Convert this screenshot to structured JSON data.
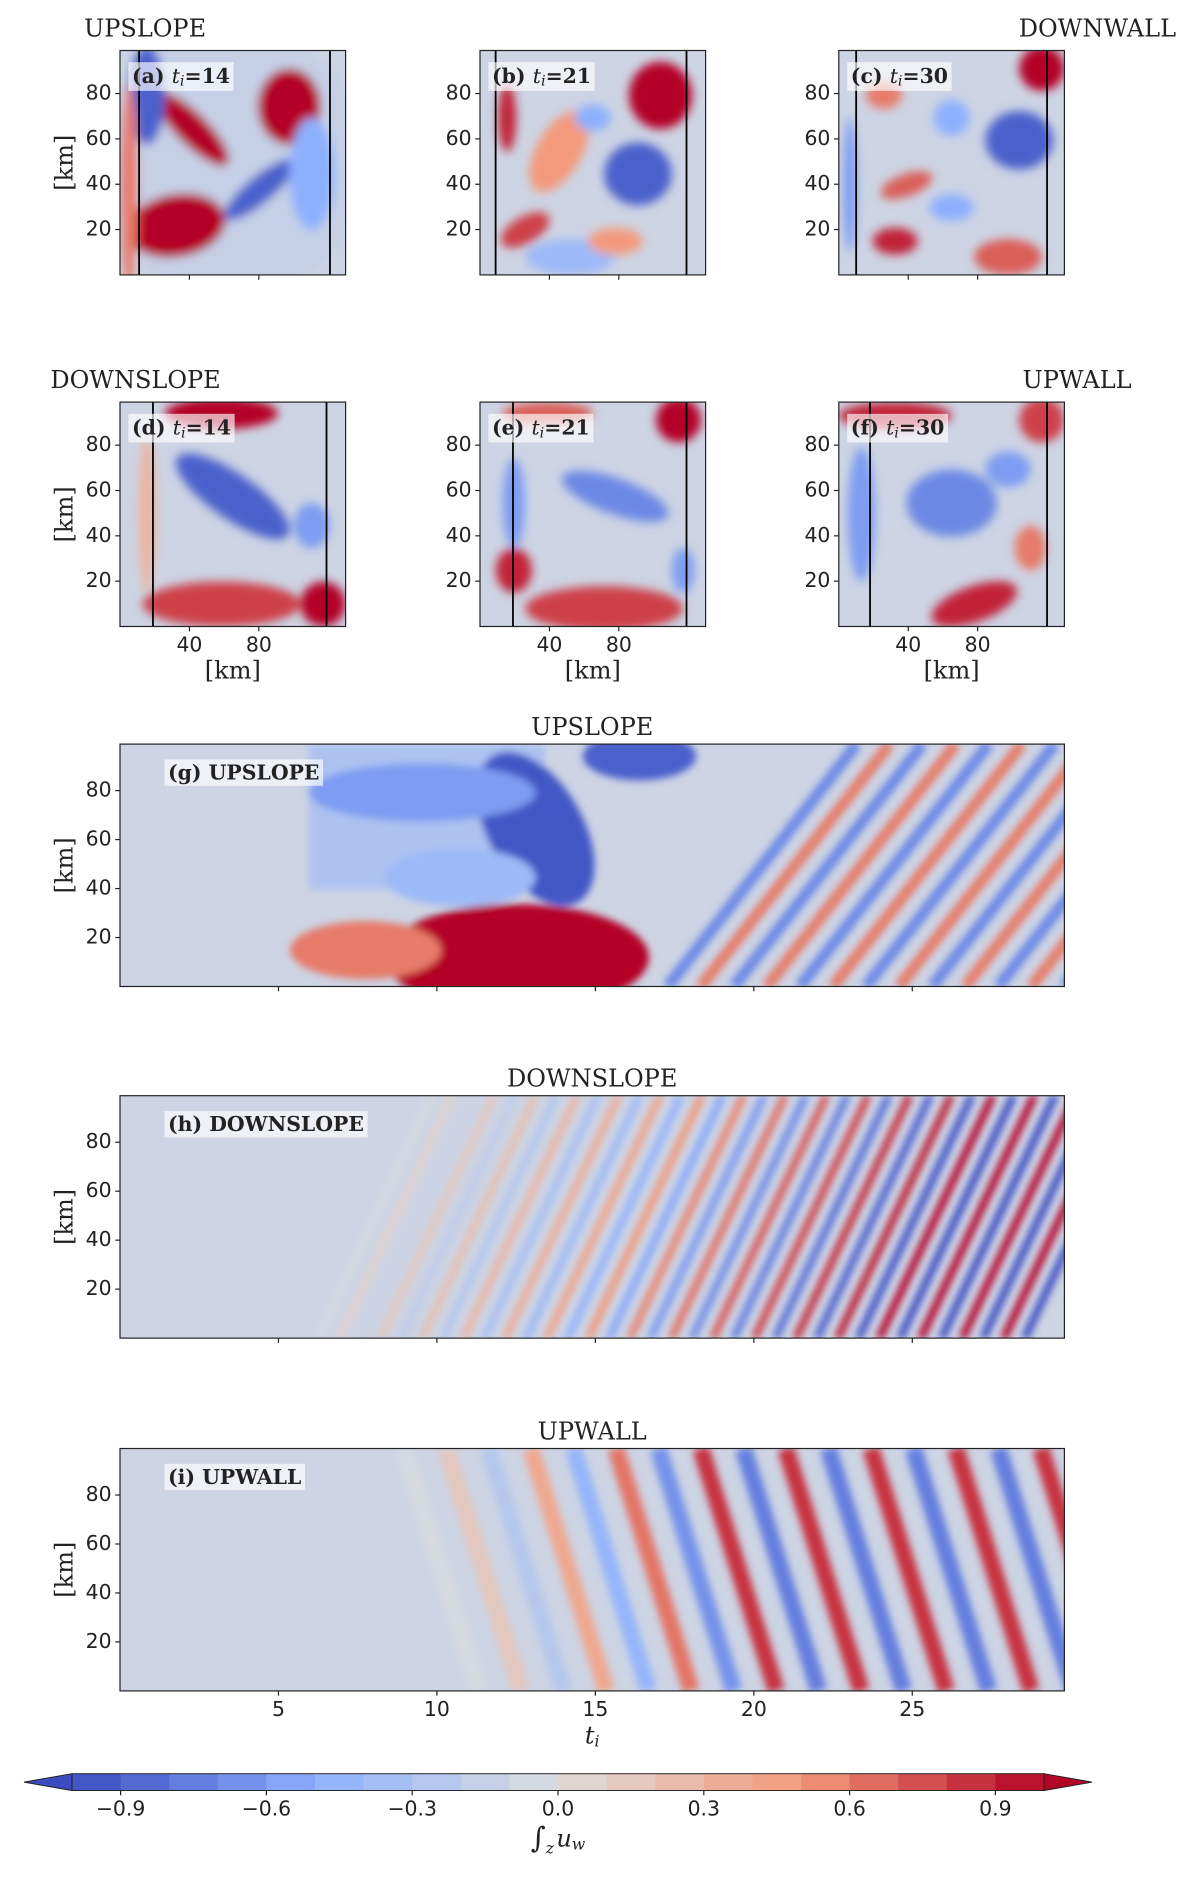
{
  "chart_data": [
    {
      "type": "heatmap",
      "title": "UPSLOPE",
      "annotation": {
        "prefix": "(a)",
        "var": "t",
        "sub": "i",
        "rest": "=14"
      },
      "ylabel": "[km]",
      "xlim": [
        0,
        130
      ],
      "ylim": [
        0,
        99
      ],
      "xticks": [
        40,
        80
      ],
      "yticks": [
        20,
        40,
        60,
        80
      ],
      "show_xtick_labels": false,
      "vlines": [
        11,
        121
      ]
    },
    {
      "type": "heatmap",
      "annotation": {
        "prefix": "(b)",
        "var": "t",
        "sub": "i",
        "rest": "=21"
      },
      "xlim": [
        0,
        130
      ],
      "ylim": [
        0,
        99
      ],
      "xticks": [
        40,
        80
      ],
      "yticks": [
        20,
        40,
        60,
        80
      ],
      "show_xtick_labels": false,
      "vlines": [
        9,
        119
      ]
    },
    {
      "type": "heatmap",
      "title": "DOWNWALL",
      "annotation": {
        "prefix": "(c)",
        "var": "t",
        "sub": "i",
        "rest": "=30"
      },
      "xlim": [
        0,
        130
      ],
      "ylim": [
        0,
        99
      ],
      "xticks": [
        40,
        80
      ],
      "yticks": [
        20,
        40,
        60,
        80
      ],
      "show_xtick_labels": false,
      "vlines": [
        10,
        120
      ]
    },
    {
      "type": "heatmap",
      "title": "DOWNSLOPE",
      "annotation": {
        "prefix": "(d)",
        "var": "t",
        "sub": "i",
        "rest": "=14"
      },
      "ylabel": "[km]",
      "xlabel": "[km]",
      "xlim": [
        0,
        130
      ],
      "ylim": [
        0,
        99
      ],
      "xticks": [
        40,
        80
      ],
      "yticks": [
        20,
        40,
        60,
        80
      ],
      "show_xtick_labels": true,
      "vlines": [
        19,
        119
      ]
    },
    {
      "type": "heatmap",
      "annotation": {
        "prefix": "(e)",
        "var": "t",
        "sub": "i",
        "rest": "=21"
      },
      "xlabel": "[km]",
      "xlim": [
        0,
        130
      ],
      "ylim": [
        0,
        99
      ],
      "xticks": [
        40,
        80
      ],
      "yticks": [
        20,
        40,
        60,
        80
      ],
      "show_xtick_labels": true,
      "vlines": [
        19,
        119
      ]
    },
    {
      "type": "heatmap",
      "title": "UPWALL",
      "annotation": {
        "prefix": "(f)",
        "var": "t",
        "sub": "i",
        "rest": "=30"
      },
      "xlabel": "[km]",
      "xlim": [
        0,
        130
      ],
      "ylim": [
        0,
        99
      ],
      "xticks": [
        40,
        80
      ],
      "yticks": [
        20,
        40,
        60,
        80
      ],
      "show_xtick_labels": true,
      "vlines": [
        18,
        120
      ]
    },
    {
      "type": "heatmap",
      "title": "UPSLOPE",
      "annotation": "(g) UPSLOPE",
      "ylabel": "[km]",
      "xlim": [
        0,
        29.8
      ],
      "ylim": [
        0,
        99
      ],
      "xticks": [
        5,
        10,
        15,
        20,
        25
      ],
      "yticks": [
        20,
        40,
        60,
        80
      ],
      "show_xtick_labels": false
    },
    {
      "type": "heatmap",
      "title": "DOWNSLOPE",
      "annotation": "(h) DOWNSLOPE",
      "ylabel": "[km]",
      "xlim": [
        0,
        29.8
      ],
      "ylim": [
        0,
        99
      ],
      "xticks": [
        5,
        10,
        15,
        20,
        25
      ],
      "yticks": [
        20,
        40,
        60,
        80
      ],
      "show_xtick_labels": false
    },
    {
      "type": "heatmap",
      "title": "UPWALL",
      "annotation": "(i) UPWALL",
      "ylabel": "[km]",
      "xlabel": {
        "var": "t",
        "sub": "i"
      },
      "xlim": [
        0,
        29.8
      ],
      "ylim": [
        0,
        99
      ],
      "xticks": [
        5,
        10,
        15,
        20,
        25
      ],
      "yticks": [
        20,
        40,
        60,
        80
      ],
      "show_xtick_labels": true
    },
    {
      "type": "colorbar",
      "cmap": "coolwarm",
      "clim": [
        -1,
        1
      ],
      "levels": 20,
      "extend": "both",
      "ticks": [
        {
          "value": -0.9,
          "label": "−0.9"
        },
        {
          "value": -0.6,
          "label": "−0.6"
        },
        {
          "value": -0.3,
          "label": "−0.3"
        },
        {
          "value": 0,
          "label": "0.0"
        },
        0.3,
        0.6,
        0.9
      ],
      "label": {
        "sign": "∫",
        "sub": "z",
        "var": "u",
        "var_sub": "w"
      }
    }
  ]
}
